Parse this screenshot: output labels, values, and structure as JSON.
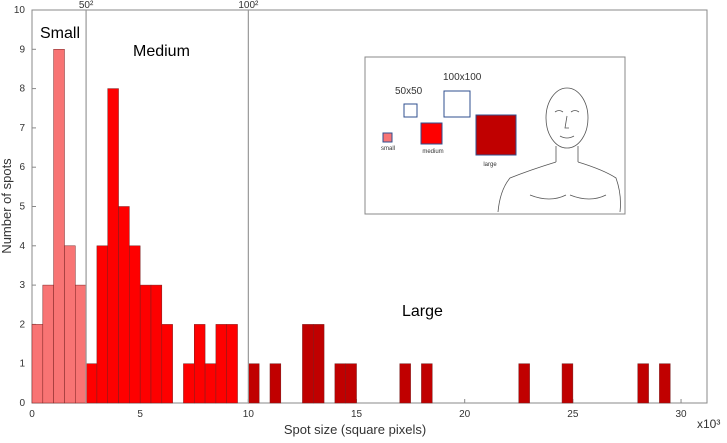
{
  "chart_data": {
    "type": "histogram",
    "xlabel": "Spot size (square pixels)",
    "ylabel": "Number of spots",
    "x_multiplier": "x10³",
    "xlim": [
      0,
      31.2
    ],
    "ylim": [
      0,
      10
    ],
    "xticks": [
      0,
      5,
      10,
      15,
      20,
      25,
      30
    ],
    "yticks": [
      0,
      1,
      2,
      3,
      4,
      5,
      6,
      7,
      8,
      9,
      10
    ],
    "thresholds": [
      {
        "value": 2.5,
        "label": "50²"
      },
      {
        "value": 10,
        "label": "100²"
      }
    ],
    "series": [
      {
        "name": "Small",
        "color": "#f87474",
        "bins": [
          0,
          0.5,
          1,
          1.5,
          2,
          2.5
        ],
        "values": [
          2,
          3,
          9,
          4,
          3
        ]
      },
      {
        "name": "Medium",
        "color": "#fe0000",
        "bins": [
          2.5,
          3,
          3.5,
          4,
          4.5,
          5,
          5.5,
          6,
          6.5,
          7,
          7.5,
          8,
          8.5,
          9,
          9.5,
          10
        ],
        "values": [
          1,
          4,
          8,
          5,
          4,
          3,
          3,
          2,
          0,
          1,
          2,
          1,
          2,
          2,
          0
        ]
      },
      {
        "name": "Large",
        "color": "#c00000",
        "bins": [
          10,
          10.5,
          11,
          11.5,
          12,
          12.5,
          13,
          13.5,
          14,
          14.5,
          15,
          15.5,
          16,
          16.5,
          17,
          17.5,
          18,
          18.5,
          19,
          19.5,
          20,
          20.5,
          21,
          21.5,
          22,
          22.5,
          23,
          23.5,
          24,
          24.5,
          25,
          25.5,
          26,
          26.5,
          27,
          27.5,
          28,
          28.5,
          29,
          29.5,
          30
        ],
        "values": [
          1,
          0,
          1,
          0,
          0,
          2,
          2,
          0,
          1,
          1,
          0,
          0,
          0,
          0,
          1,
          0,
          1,
          0,
          0,
          0,
          0,
          0,
          0,
          0,
          0,
          1,
          0,
          0,
          0,
          1,
          0,
          0,
          0,
          0,
          0,
          0,
          1,
          0,
          1,
          0
        ]
      }
    ],
    "inset": {
      "size_labels": [
        "50x50",
        "100x100"
      ],
      "class_labels": [
        "small",
        "medium",
        "large"
      ]
    }
  }
}
